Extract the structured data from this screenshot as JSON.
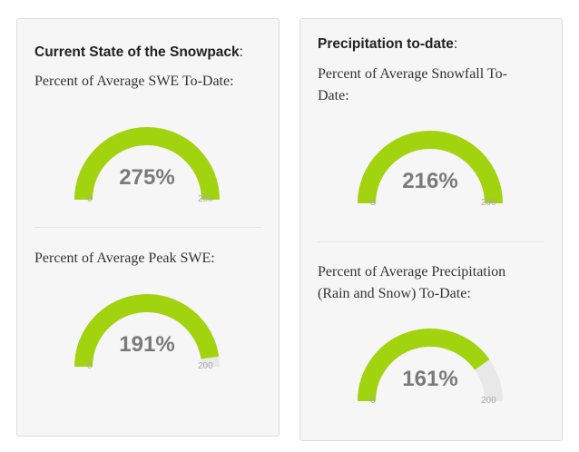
{
  "colors": {
    "fill": "#a2d30f",
    "track": "#e8e8e8"
  },
  "left": {
    "heading_bold": "Current State of the Snowpack",
    "heading_colon": ":",
    "gauges": [
      {
        "label": "Percent of Average SWE To-Date:",
        "value_text": "275%",
        "value": 275,
        "min": "0",
        "max": "200"
      },
      {
        "label": "Percent of Average Peak SWE:",
        "value_text": "191%",
        "value": 191,
        "min": "0",
        "max": "200"
      }
    ]
  },
  "right": {
    "heading_bold": "Precipitation to-date",
    "heading_colon": ":",
    "gauges": [
      {
        "label_line1": "Percent of Average Snowfall To-",
        "label_line2": "Date:",
        "value_text": "216%",
        "value": 216,
        "min": "0",
        "max": "200"
      },
      {
        "label_line1": "Percent of Average Precipitation",
        "label_line2": "(Rain and Snow) To-Date:",
        "value_text": "161%",
        "value": 161,
        "min": "0",
        "max": "200"
      }
    ]
  }
}
